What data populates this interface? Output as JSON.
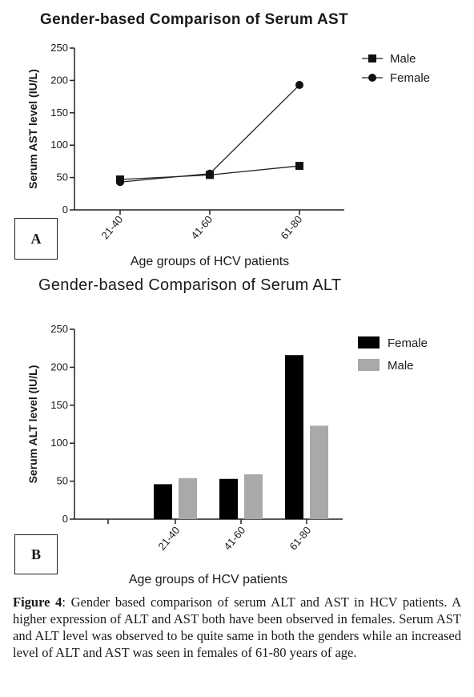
{
  "chart_data": [
    {
      "type": "line",
      "title": "Gender-based Comparison of Serum AST",
      "panel_label": "A",
      "xlabel": "Age groups of HCV patients",
      "ylabel": "Serum AST level (IU/L)",
      "categories": [
        "21-40",
        "41-60",
        "61-80"
      ],
      "ylim": [
        0,
        250
      ],
      "yticks": [
        0,
        50,
        100,
        150,
        200,
        250
      ],
      "series": [
        {
          "name": "Male",
          "marker": "square",
          "values": [
            47,
            54,
            68
          ]
        },
        {
          "name": "Female",
          "marker": "circle",
          "values": [
            43,
            56,
            193
          ]
        }
      ],
      "legend": "top-right",
      "grid": false
    },
    {
      "type": "bar",
      "title": "Gender-based Comparison of Serum ALT",
      "panel_label": "B",
      "xlabel": "Age groups of HCV patients",
      "ylabel": "Serum ALT level (IU/L)",
      "categories": [
        "",
        "21-40",
        "41-60",
        "61-80"
      ],
      "ylim": [
        0,
        250
      ],
      "yticks": [
        0,
        50,
        100,
        150,
        200,
        250
      ],
      "series": [
        {
          "name": "Female",
          "color": "#000000",
          "values": [
            null,
            46,
            53,
            216
          ]
        },
        {
          "name": "Male",
          "color": "#a9a9a9",
          "values": [
            null,
            54,
            59,
            123
          ]
        }
      ],
      "legend": "top-right",
      "grid": false
    }
  ],
  "caption": {
    "label": "Figure 4",
    "text": ": Gender based comparison of serum ALT and AST in HCV patients. A higher expression of ALT and AST both have been observed in females. Serum AST and ALT level was observed to be quite same in both the genders while an increased level of ALT and AST was seen in females of 61-80 years of age."
  }
}
